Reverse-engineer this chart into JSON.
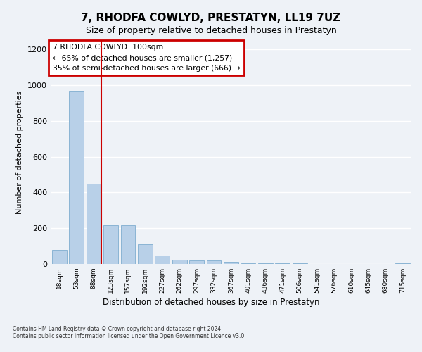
{
  "title": "7, RHODFA COWLYD, PRESTATYN, LL19 7UZ",
  "subtitle": "Size of property relative to detached houses in Prestatyn",
  "xlabel": "Distribution of detached houses by size in Prestatyn",
  "ylabel": "Number of detached properties",
  "categories": [
    "18sqm",
    "53sqm",
    "88sqm",
    "123sqm",
    "157sqm",
    "192sqm",
    "227sqm",
    "262sqm",
    "297sqm",
    "332sqm",
    "367sqm",
    "401sqm",
    "436sqm",
    "471sqm",
    "506sqm",
    "541sqm",
    "576sqm",
    "610sqm",
    "645sqm",
    "680sqm",
    "715sqm"
  ],
  "values": [
    80,
    970,
    450,
    215,
    215,
    110,
    48,
    25,
    20,
    18,
    12,
    5,
    3,
    2,
    2,
    1,
    1,
    1,
    1,
    1,
    2
  ],
  "bar_color": "#b8d0e8",
  "bar_edge_color": "#8ab4d4",
  "vline_color": "#cc0000",
  "vline_position": 2.43,
  "annotation_box_text": "7 RHODFA COWLYD: 100sqm\n← 65% of detached houses are smaller (1,257)\n35% of semi-detached houses are larger (666) →",
  "annotation_box_color": "#cc0000",
  "ylim": [
    0,
    1250
  ],
  "yticks": [
    0,
    200,
    400,
    600,
    800,
    1000,
    1200
  ],
  "background_color": "#eef2f7",
  "grid_color": "#ffffff",
  "footer": "Contains HM Land Registry data © Crown copyright and database right 2024.\nContains public sector information licensed under the Open Government Licence v3.0.",
  "title_fontsize": 11,
  "subtitle_fontsize": 9
}
